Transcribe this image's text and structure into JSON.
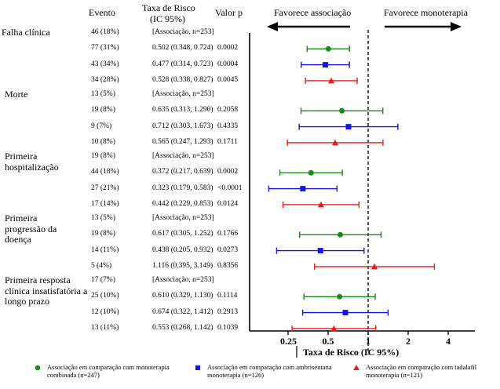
{
  "headers": {
    "evento": "Evento",
    "hr": "Taxa de Risco",
    "ci": "(IC 95%)",
    "p": "Valor p",
    "favor_left": "Favorece associação",
    "favor_right": "Favorece monoterapia"
  },
  "groups": [
    {
      "label_lines": [
        "Falha clínica"
      ],
      "ref_event": "46 (18%)",
      "ref_text": "[Associação, n=253]",
      "rows": [
        {
          "event": "77 (31%)",
          "hr_ci": "0.502  (0.348, 0.724)",
          "p": "0.0002"
        },
        {
          "event": "43 (34%)",
          "hr_ci": "0.477  (0.314, 0.723)",
          "p": "0.0004"
        },
        {
          "event": "34 (28%)",
          "hr_ci": "0.528  (0.338, 0.827)",
          "p": "0.0045"
        }
      ]
    },
    {
      "label_lines": [
        "Morte"
      ],
      "ref_event": "13 (5%)",
      "ref_text": "[Associação, n=253]",
      "rows": [
        {
          "event": "19 (8%)",
          "hr_ci": "0.635  (0.313, 1.290)",
          "p": "0.2058"
        },
        {
          "event": "9 (7%)",
          "hr_ci": "0.712  (0.303, 1.673)",
          "p": "0.4335"
        },
        {
          "event": "10 (8%)",
          "hr_ci": "0.565  (0.247, 1.293)",
          "p": "0.1711"
        }
      ]
    },
    {
      "label_lines": [
        "Primeira",
        "hospitalização"
      ],
      "ref_event": "19 (8%)",
      "ref_text": "[Associação, n=253]",
      "rows": [
        {
          "event": "44 (18%)",
          "hr_ci": "0.372  (0.217, 0.639)",
          "p": "0.0002"
        },
        {
          "event": "27 (21%)",
          "hr_ci": "0.323  (0.179, 0.583)",
          "p": "<0.0001"
        },
        {
          "event": "17 (14%)",
          "hr_ci": "0.442  (0.229, 0.853)",
          "p": "0.0124"
        }
      ]
    },
    {
      "label_lines": [
        "Primeira",
        "progressão da",
        "doença"
      ],
      "ref_event": "13 (5%)",
      "ref_text": "[Associação, n=253]",
      "rows": [
        {
          "event": "19 (8%)",
          "hr_ci": "0.617  (0.305, 1.252)",
          "p": "0.1766"
        },
        {
          "event": "14 (11%)",
          "hr_ci": "0.438  (0.205, 0.932)",
          "p": "0.0273"
        },
        {
          "event": "5 (4%)",
          "hr_ci": "1.116  (0.395, 3.149)",
          "p": "0.8356"
        }
      ]
    },
    {
      "label_lines": [
        "Primeira resposta",
        "clínica insatisfatória a",
        "longo prazo"
      ],
      "ref_event": "17 (7%)",
      "ref_text": "[Associação, n=253]",
      "rows": [
        {
          "event": "25 (10%)",
          "hr_ci": "0.610  (0.329, 1.130)",
          "p": "0.1114"
        },
        {
          "event": "12 (10%)",
          "hr_ci": "0.674  (0.322, 1.412)",
          "p": "0.2913"
        },
        {
          "event": "13 (11%)",
          "hr_ci": "0.553  (0.268, 1.142)",
          "p": "0.1039"
        }
      ]
    }
  ],
  "legend": [
    {
      "text": "Associação em comparação com monoterapia combinada (n=247)",
      "color": "#1a8a1a",
      "marker": "circle"
    },
    {
      "text": "Associação em comparação com ambrisentana monoterapia (n=126)",
      "color": "#1515e8",
      "marker": "square"
    },
    {
      "text": "Associação em comparação com tadalafil monoterapia (n=121)",
      "color": "#e81b1b",
      "marker": "triangle"
    }
  ],
  "chart_data": {
    "type": "scatter",
    "subtype": "forest-plot",
    "xlabel": "Taxa de Risco (IC 95%)",
    "x_scale": "log2",
    "xlim": [
      0.125,
      4.6
    ],
    "x_ticks": [
      0.25,
      0.5,
      1,
      2,
      4
    ],
    "x_tick_labels": [
      "0.25",
      "0.5",
      "1",
      "2",
      "4"
    ],
    "reference_line": 1,
    "series_colors": [
      "#1a8a1a",
      "#1515e8",
      "#e81b1b"
    ],
    "points": [
      {
        "group": 0,
        "series": 0,
        "hr": 0.502,
        "lo": 0.348,
        "hi": 0.724
      },
      {
        "group": 0,
        "series": 1,
        "hr": 0.477,
        "lo": 0.314,
        "hi": 0.723
      },
      {
        "group": 0,
        "series": 2,
        "hr": 0.528,
        "lo": 0.338,
        "hi": 0.827
      },
      {
        "group": 1,
        "series": 0,
        "hr": 0.635,
        "lo": 0.313,
        "hi": 1.29
      },
      {
        "group": 1,
        "series": 1,
        "hr": 0.712,
        "lo": 0.303,
        "hi": 1.673
      },
      {
        "group": 1,
        "series": 2,
        "hr": 0.565,
        "lo": 0.247,
        "hi": 1.293
      },
      {
        "group": 2,
        "series": 0,
        "hr": 0.372,
        "lo": 0.217,
        "hi": 0.639
      },
      {
        "group": 2,
        "series": 1,
        "hr": 0.323,
        "lo": 0.179,
        "hi": 0.583
      },
      {
        "group": 2,
        "series": 2,
        "hr": 0.442,
        "lo": 0.229,
        "hi": 0.853
      },
      {
        "group": 3,
        "series": 0,
        "hr": 0.617,
        "lo": 0.305,
        "hi": 1.252
      },
      {
        "group": 3,
        "series": 1,
        "hr": 0.438,
        "lo": 0.205,
        "hi": 0.932
      },
      {
        "group": 3,
        "series": 2,
        "hr": 1.116,
        "lo": 0.395,
        "hi": 3.149
      },
      {
        "group": 4,
        "series": 0,
        "hr": 0.61,
        "lo": 0.329,
        "hi": 1.13
      },
      {
        "group": 4,
        "series": 1,
        "hr": 0.674,
        "lo": 0.322,
        "hi": 1.412
      },
      {
        "group": 4,
        "series": 2,
        "hr": 0.553,
        "lo": 0.268,
        "hi": 1.142
      }
    ]
  }
}
